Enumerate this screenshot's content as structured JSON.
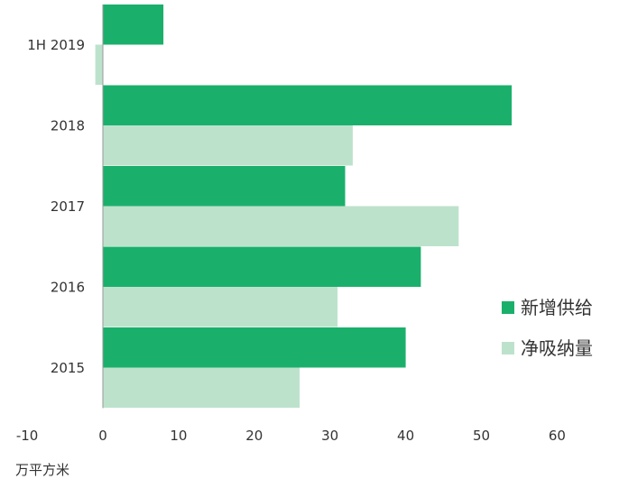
{
  "chart_data": {
    "type": "bar",
    "orientation": "horizontal",
    "categories": [
      "1H 2019",
      "2018",
      "2017",
      "2016",
      "2015"
    ],
    "series": [
      {
        "name": "新增供给",
        "color": "#1ab06b",
        "values": [
          8,
          54,
          32,
          42,
          40
        ]
      },
      {
        "name": "净吸纳量",
        "color": "#bde2cc",
        "values": [
          -1,
          33,
          47,
          31,
          26
        ]
      }
    ],
    "xlim": [
      -10,
      60
    ],
    "xticks": [
      -10,
      0,
      10,
      20,
      30,
      40,
      50,
      60
    ],
    "unit_label": "万平方米",
    "legend_position": "right",
    "grid": false
  }
}
